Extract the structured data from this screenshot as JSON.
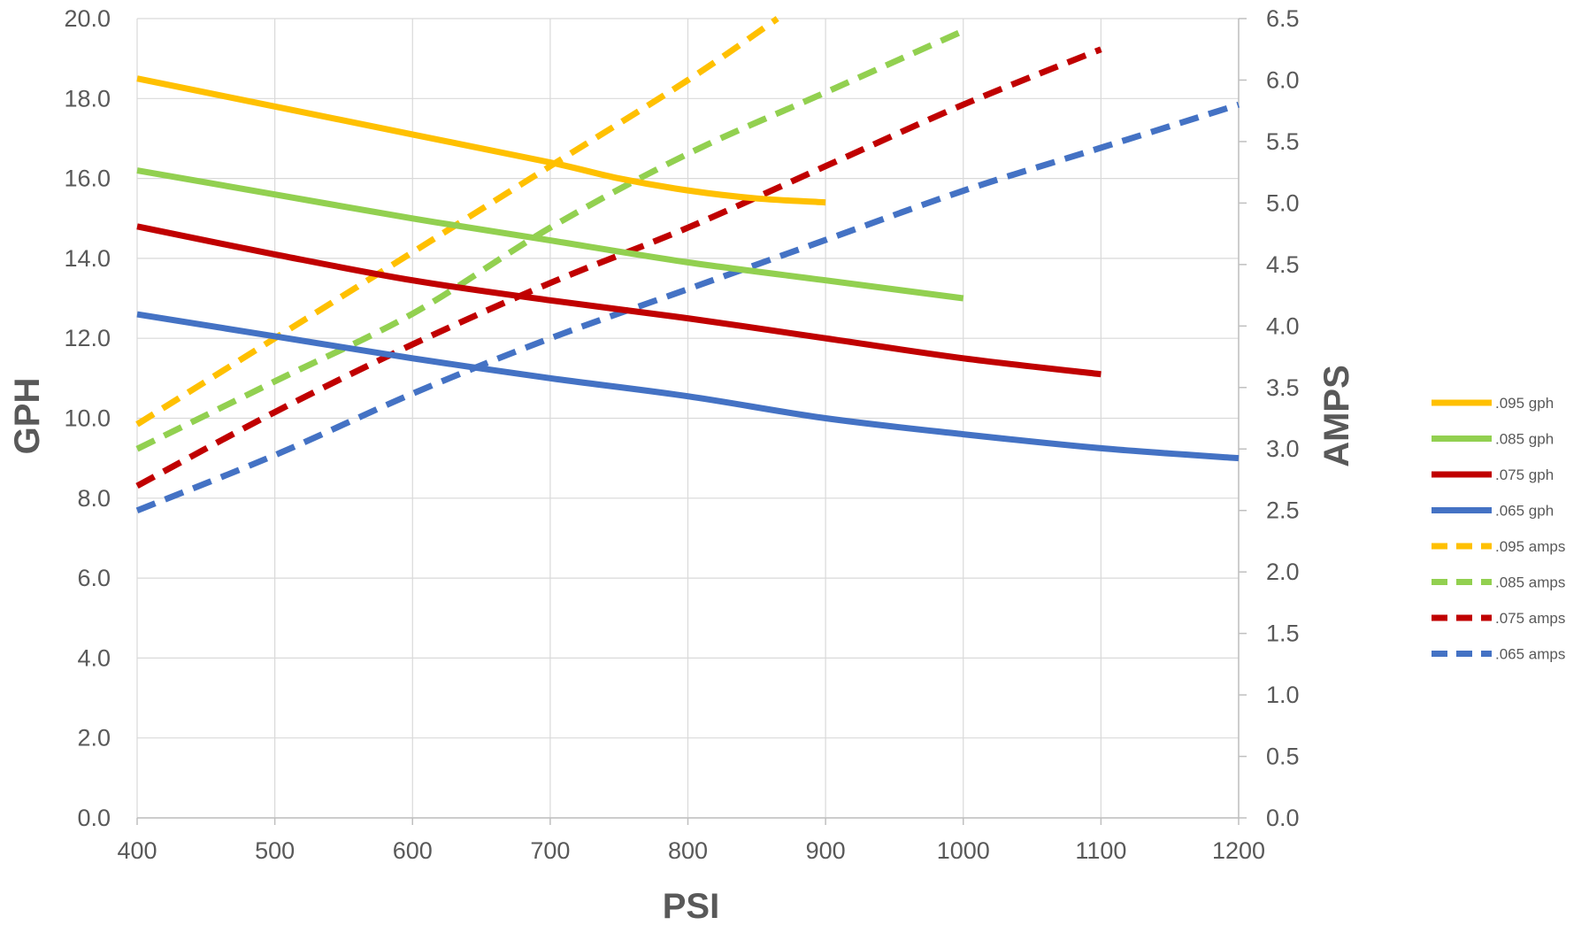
{
  "chart_data": {
    "type": "line",
    "xlabel": "PSI",
    "ylabel": "GPH",
    "y2label": "AMPS",
    "xlim": [
      400,
      1200
    ],
    "ylim": [
      0,
      20
    ],
    "y2lim": [
      0,
      6.5
    ],
    "x_ticks": [
      "400",
      "500",
      "600",
      "700",
      "800",
      "900",
      "1000",
      "1100",
      "1200"
    ],
    "y_ticks": [
      "0.0",
      "2.0",
      "4.0",
      "6.0",
      "8.0",
      "10.0",
      "12.0",
      "14.0",
      "16.0",
      "18.0",
      "20.0"
    ],
    "y2_ticks": [
      "0.0",
      "0.5",
      "1.0",
      "1.5",
      "2.0",
      "2.5",
      "3.0",
      "3.5",
      "4.0",
      "4.5",
      "5.0",
      "5.5",
      "6.0",
      "6.5"
    ],
    "grid": true,
    "legend_position": "right",
    "series": [
      {
        "name": ".095 gph",
        "axis": "left",
        "style": "solid",
        "color": "#ffc000",
        "x": [
          400,
          500,
          600,
          700,
          750,
          800,
          850,
          900
        ],
        "y": [
          18.5,
          17.8,
          17.1,
          16.4,
          16.0,
          15.7,
          15.5,
          15.4
        ]
      },
      {
        "name": ".085 gph",
        "axis": "left",
        "style": "solid",
        "color": "#92d050",
        "x": [
          400,
          500,
          600,
          700,
          800,
          900,
          1000
        ],
        "y": [
          16.2,
          15.6,
          15.0,
          14.45,
          13.9,
          13.45,
          13.0
        ]
      },
      {
        "name": ".075 gph",
        "axis": "left",
        "style": "solid",
        "color": "#c00000",
        "x": [
          400,
          500,
          600,
          700,
          800,
          900,
          1000,
          1100
        ],
        "y": [
          14.8,
          14.1,
          13.45,
          12.95,
          12.5,
          12.0,
          11.5,
          11.1
        ]
      },
      {
        "name": ".065 gph",
        "axis": "left",
        "style": "solid",
        "color": "#4472c4",
        "x": [
          400,
          500,
          600,
          700,
          800,
          900,
          1000,
          1100,
          1200
        ],
        "y": [
          12.6,
          12.05,
          11.5,
          11.0,
          10.55,
          10.0,
          9.6,
          9.25,
          9.0
        ]
      },
      {
        "name": ".095 amps",
        "axis": "right",
        "style": "dashed",
        "color": "#ffc000",
        "x": [
          400,
          500,
          600,
          700,
          800,
          865
        ],
        "y": [
          3.2,
          3.9,
          4.6,
          5.3,
          6.0,
          6.5
        ]
      },
      {
        "name": ".085 amps",
        "axis": "right",
        "style": "dashed",
        "color": "#92d050",
        "x": [
          400,
          500,
          600,
          700,
          800,
          900,
          1000
        ],
        "y": [
          3.0,
          3.55,
          4.1,
          4.8,
          5.4,
          5.9,
          6.4
        ]
      },
      {
        "name": ".075 amps",
        "axis": "right",
        "style": "dashed",
        "color": "#c00000",
        "x": [
          400,
          500,
          600,
          700,
          800,
          900,
          1000,
          1100
        ],
        "y": [
          2.7,
          3.3,
          3.85,
          4.35,
          4.8,
          5.3,
          5.8,
          6.25
        ]
      },
      {
        "name": ".065 amps",
        "axis": "right",
        "style": "dashed",
        "color": "#4472c4",
        "x": [
          400,
          500,
          600,
          700,
          800,
          900,
          1000,
          1100,
          1200
        ],
        "y": [
          2.5,
          2.95,
          3.45,
          3.9,
          4.3,
          4.7,
          5.1,
          5.45,
          5.8
        ]
      }
    ]
  }
}
